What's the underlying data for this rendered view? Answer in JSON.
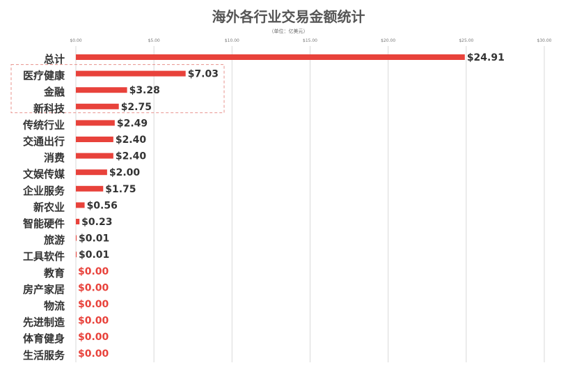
{
  "chart_data": {
    "type": "bar",
    "orientation": "horizontal",
    "title": "海外各行业交易金额统计",
    "unit_note": "（单位：亿美元）",
    "xlim": [
      0,
      30
    ],
    "x_ticks": [
      "$0.00",
      "$5.00",
      "$10.00",
      "$15.00",
      "$20.00",
      "$25.00",
      "$30.00"
    ],
    "grid": true,
    "bar_color": "#e8423b",
    "zero_label_color": "#e8423b",
    "label_color": "#333333",
    "highlight_box": [
      "医疗健康",
      "金融",
      "新科技"
    ],
    "categories": [
      "总计",
      "医疗健康",
      "金融",
      "新科技",
      "传统行业",
      "交通出行",
      "消费",
      "文娱传媒",
      "企业服务",
      "新农业",
      "智能硬件",
      "旅游",
      "工具软件",
      "教育",
      "房产家居",
      "物流",
      "先进制造",
      "体育健身",
      "生活服务"
    ],
    "values": [
      24.91,
      7.03,
      3.28,
      2.75,
      2.49,
      2.4,
      2.4,
      2.0,
      1.75,
      0.56,
      0.23,
      0.01,
      0.01,
      0.0,
      0.0,
      0.0,
      0.0,
      0.0,
      0.0
    ],
    "data_labels": [
      "$24.91",
      "$7.03",
      "$3.28",
      "$2.75",
      "$2.49",
      "$2.40",
      "$2.40",
      "$2.00",
      "$1.75",
      "$0.56",
      "$0.23",
      "$0.01",
      "$0.01",
      "$0.00",
      "$0.00",
      "$0.00",
      "$0.00",
      "$0.00",
      "$0.00"
    ]
  }
}
